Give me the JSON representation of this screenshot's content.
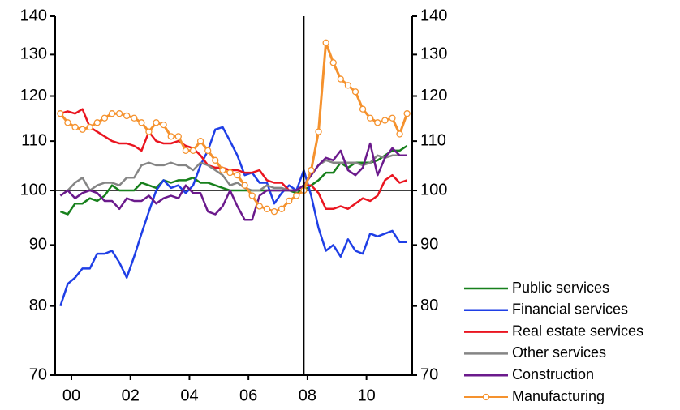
{
  "chart_data": {
    "type": "line",
    "x": [
      2000.125,
      2000.375,
      2000.625,
      2000.875,
      2001.125,
      2001.375,
      2001.625,
      2001.875,
      2002.125,
      2002.375,
      2002.625,
      2002.875,
      2003.125,
      2003.375,
      2003.625,
      2003.875,
      2004.125,
      2004.375,
      2004.625,
      2004.875,
      2005.125,
      2005.375,
      2005.625,
      2005.875,
      2006.125,
      2006.375,
      2006.625,
      2006.875,
      2007.125,
      2007.375,
      2007.625,
      2007.875,
      2008.125,
      2008.375,
      2008.625,
      2008.875,
      2009.125,
      2009.375,
      2009.625,
      2009.875,
      2010.125,
      2010.375,
      2010.625,
      2010.875,
      2011.125,
      2011.375,
      2011.625,
      2011.875
    ],
    "xlim": [
      1999.95,
      2012.05
    ],
    "xticks": [
      {
        "value": 2000.5,
        "label": "00"
      },
      {
        "value": 2002.5,
        "label": "02"
      },
      {
        "value": 2004.5,
        "label": "04"
      },
      {
        "value": 2006.5,
        "label": "06"
      },
      {
        "value": 2008.5,
        "label": "08"
      },
      {
        "value": 2010.5,
        "label": "10"
      }
    ],
    "ylim": [
      70,
      140
    ],
    "yticks": [
      70,
      80,
      90,
      100,
      110,
      120,
      130,
      140
    ],
    "ylog": true,
    "y2lim": [
      70,
      140
    ],
    "y2ticks": [
      70,
      80,
      90,
      100,
      110,
      120,
      130,
      140
    ],
    "vline": 2008.375,
    "hline": 100,
    "series": [
      {
        "name": "Public services",
        "color": "#17801c",
        "values": [
          96,
          95.5,
          97.5,
          97.5,
          98.5,
          98,
          99,
          101,
          100,
          100,
          100,
          101.5,
          101,
          100.5,
          102,
          101.5,
          102,
          102,
          102.5,
          101.5,
          101.5,
          101,
          100.5,
          100,
          100,
          100,
          100,
          100,
          100,
          100,
          100,
          100,
          99.5,
          100,
          101,
          102,
          103.5,
          103.5,
          105.5,
          104.5,
          105.5,
          105.5,
          105.5,
          106,
          107,
          108,
          108,
          109
        ]
      },
      {
        "name": "Financial services",
        "color": "#1f3fe6",
        "values": [
          80,
          83.5,
          84.5,
          86,
          86,
          88.5,
          88.5,
          89,
          87,
          84.5,
          88,
          92,
          96,
          100,
          102,
          100.5,
          101,
          99.5,
          101,
          105,
          108,
          112.5,
          113,
          110,
          107,
          103,
          103.5,
          101.5,
          101.5,
          97.5,
          99.5,
          101,
          100,
          104,
          99,
          93,
          89,
          90,
          88,
          91,
          89,
          88.5,
          92,
          91.5,
          92,
          92.5,
          90.5,
          90.5
        ]
      },
      {
        "name": "Real estate services",
        "color": "#ea1520",
        "values": [
          116,
          116.5,
          116,
          117,
          113,
          112,
          111,
          110,
          109.5,
          109.5,
          109,
          108,
          112,
          110,
          109.5,
          109.5,
          110,
          109,
          108.5,
          107,
          105,
          104.5,
          104.5,
          104,
          104,
          103.5,
          103.5,
          104,
          102,
          101.5,
          101.5,
          100,
          100,
          101,
          101,
          99.5,
          96.5,
          96.5,
          97,
          96.5,
          97.5,
          98.5,
          98,
          99,
          102,
          103,
          101.5,
          102
        ]
      },
      {
        "name": "Other services",
        "color": "#858585",
        "values": [
          99,
          100,
          101.5,
          102.5,
          100,
          101,
          101.5,
          101.5,
          101,
          102.5,
          102.5,
          105,
          105.5,
          105,
          105,
          105.5,
          105,
          105,
          104,
          105.5,
          105,
          104,
          103,
          101,
          101.5,
          100.5,
          100,
          100,
          101,
          100.5,
          100.5,
          100,
          100,
          101,
          103,
          105,
          106,
          105.5,
          105.5,
          105.5,
          105.5,
          105,
          105.5,
          107,
          106.5,
          107,
          107,
          107
        ]
      },
      {
        "name": "Construction",
        "color": "#6b1a8c",
        "values": [
          99,
          100,
          98.5,
          99.5,
          100,
          99.5,
          98,
          98,
          96.5,
          98.5,
          98,
          98,
          99,
          97.5,
          98.5,
          99,
          98.5,
          101,
          99.5,
          99.5,
          96,
          95.5,
          97,
          100,
          97,
          94.5,
          94.5,
          99,
          100,
          100,
          100,
          100,
          100,
          101,
          103,
          105,
          106.5,
          106,
          108,
          104,
          103,
          104.5,
          109.5,
          103,
          106.5,
          108.5,
          107,
          107
        ]
      },
      {
        "name": "Manufacturing",
        "color": "#f5922e",
        "markers": true,
        "values": [
          116,
          114,
          113,
          112.5,
          113,
          114,
          115,
          116,
          116,
          115.5,
          115,
          114,
          112,
          114,
          113.5,
          111,
          111,
          108,
          108,
          110,
          108,
          106,
          104,
          103.5,
          103,
          101,
          99,
          97,
          96.5,
          96,
          96.5,
          98,
          99,
          100,
          104,
          112,
          133,
          128,
          124,
          122.5,
          121,
          117,
          115,
          114,
          114.5,
          115,
          111.5,
          116
        ]
      }
    ]
  }
}
